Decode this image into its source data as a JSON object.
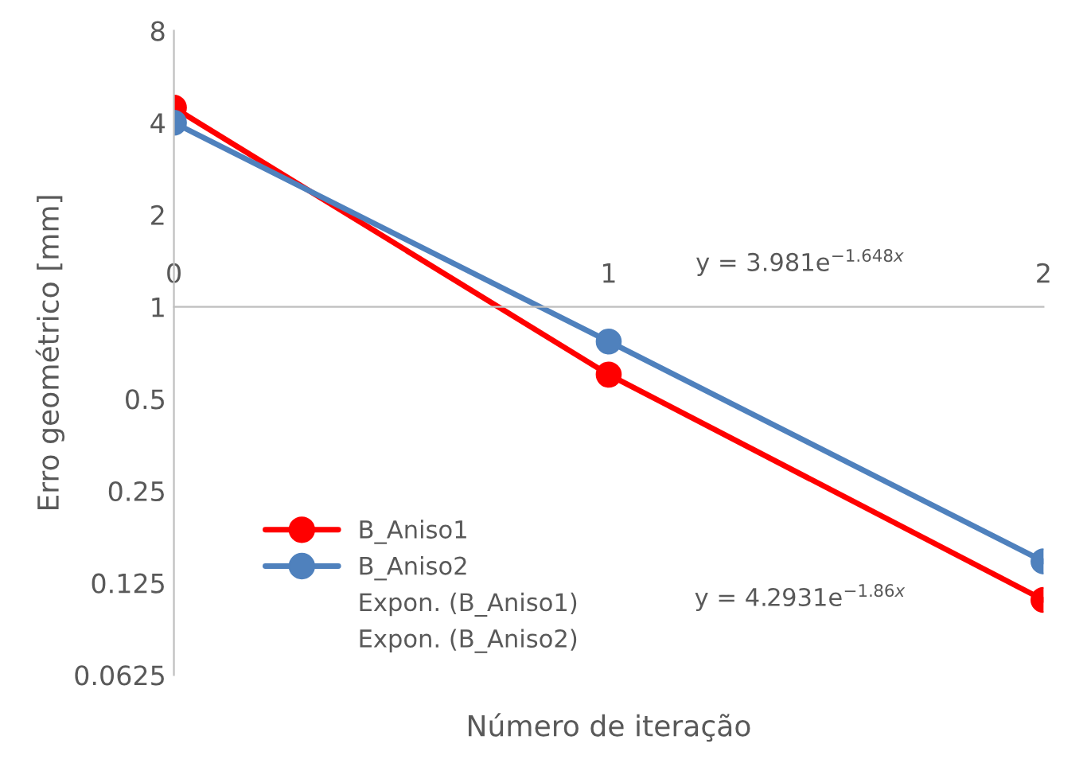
{
  "chart_data": {
    "type": "line",
    "xlabel": "Número de iteração",
    "ylabel": "Erro geométrico [mm]",
    "x": [
      0,
      1,
      2
    ],
    "series": [
      {
        "name": "B_Aniso1",
        "color": "#ff0000",
        "values": [
          4.48,
          0.6,
          0.11
        ]
      },
      {
        "name": "B_Aniso2",
        "color": "#4f81bd",
        "values": [
          4.0,
          0.77,
          0.147
        ]
      },
      {
        "name": "Expon. (B_Aniso1)",
        "values": [
          null,
          null,
          null
        ]
      },
      {
        "name": "Expon. (B_Aniso2)",
        "values": [
          null,
          null,
          null
        ]
      }
    ],
    "log": "y",
    "ylim": [
      0.0625,
      8
    ],
    "yticks": [
      0.0625,
      0.125,
      0.25,
      0.5,
      1,
      2,
      4,
      8
    ],
    "xlim": [
      0,
      2
    ],
    "xticks": [
      0,
      1,
      2
    ],
    "marker": "circle",
    "line_style": "solid",
    "grid": false,
    "legend": "bottom left",
    "annotations": [
      "y = 3.981e$^{−1.648x}$",
      "y = 4.2931e$^{−1.86x}$"
    ]
  }
}
